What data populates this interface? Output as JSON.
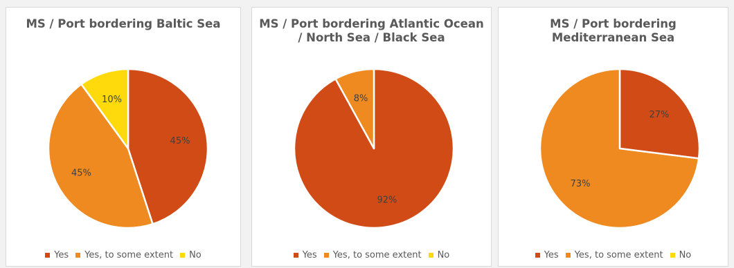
{
  "colors": {
    "yes": "#d14b16",
    "some": "#ef8a21",
    "no": "#fed90c"
  },
  "legend": [
    {
      "label": "Yes",
      "color": "#d14b16"
    },
    {
      "label": "Yes, to some extent",
      "color": "#ef8a21"
    },
    {
      "label": "No",
      "color": "#fed90c"
    }
  ],
  "chart_data": [
    {
      "type": "pie",
      "title": "MS / Port bordering Baltic Sea",
      "categories": [
        "Yes",
        "Yes, to some extent",
        "No"
      ],
      "values": [
        45,
        45,
        10
      ],
      "labels": [
        "45%",
        "45%",
        "10%"
      ]
    },
    {
      "type": "pie",
      "title": "MS / Port bordering Atlantic Ocean / North Sea / Black Sea",
      "categories": [
        "Yes",
        "Yes, to some extent",
        "No"
      ],
      "values": [
        92,
        8,
        0
      ],
      "labels": [
        "92%",
        "8%",
        ""
      ]
    },
    {
      "type": "pie",
      "title": "MS / Port bordering Mediterranean Sea",
      "categories": [
        "Yes",
        "Yes, to some extent",
        "No"
      ],
      "values": [
        27,
        73,
        0
      ],
      "labels": [
        "27%",
        "73%",
        ""
      ]
    }
  ]
}
